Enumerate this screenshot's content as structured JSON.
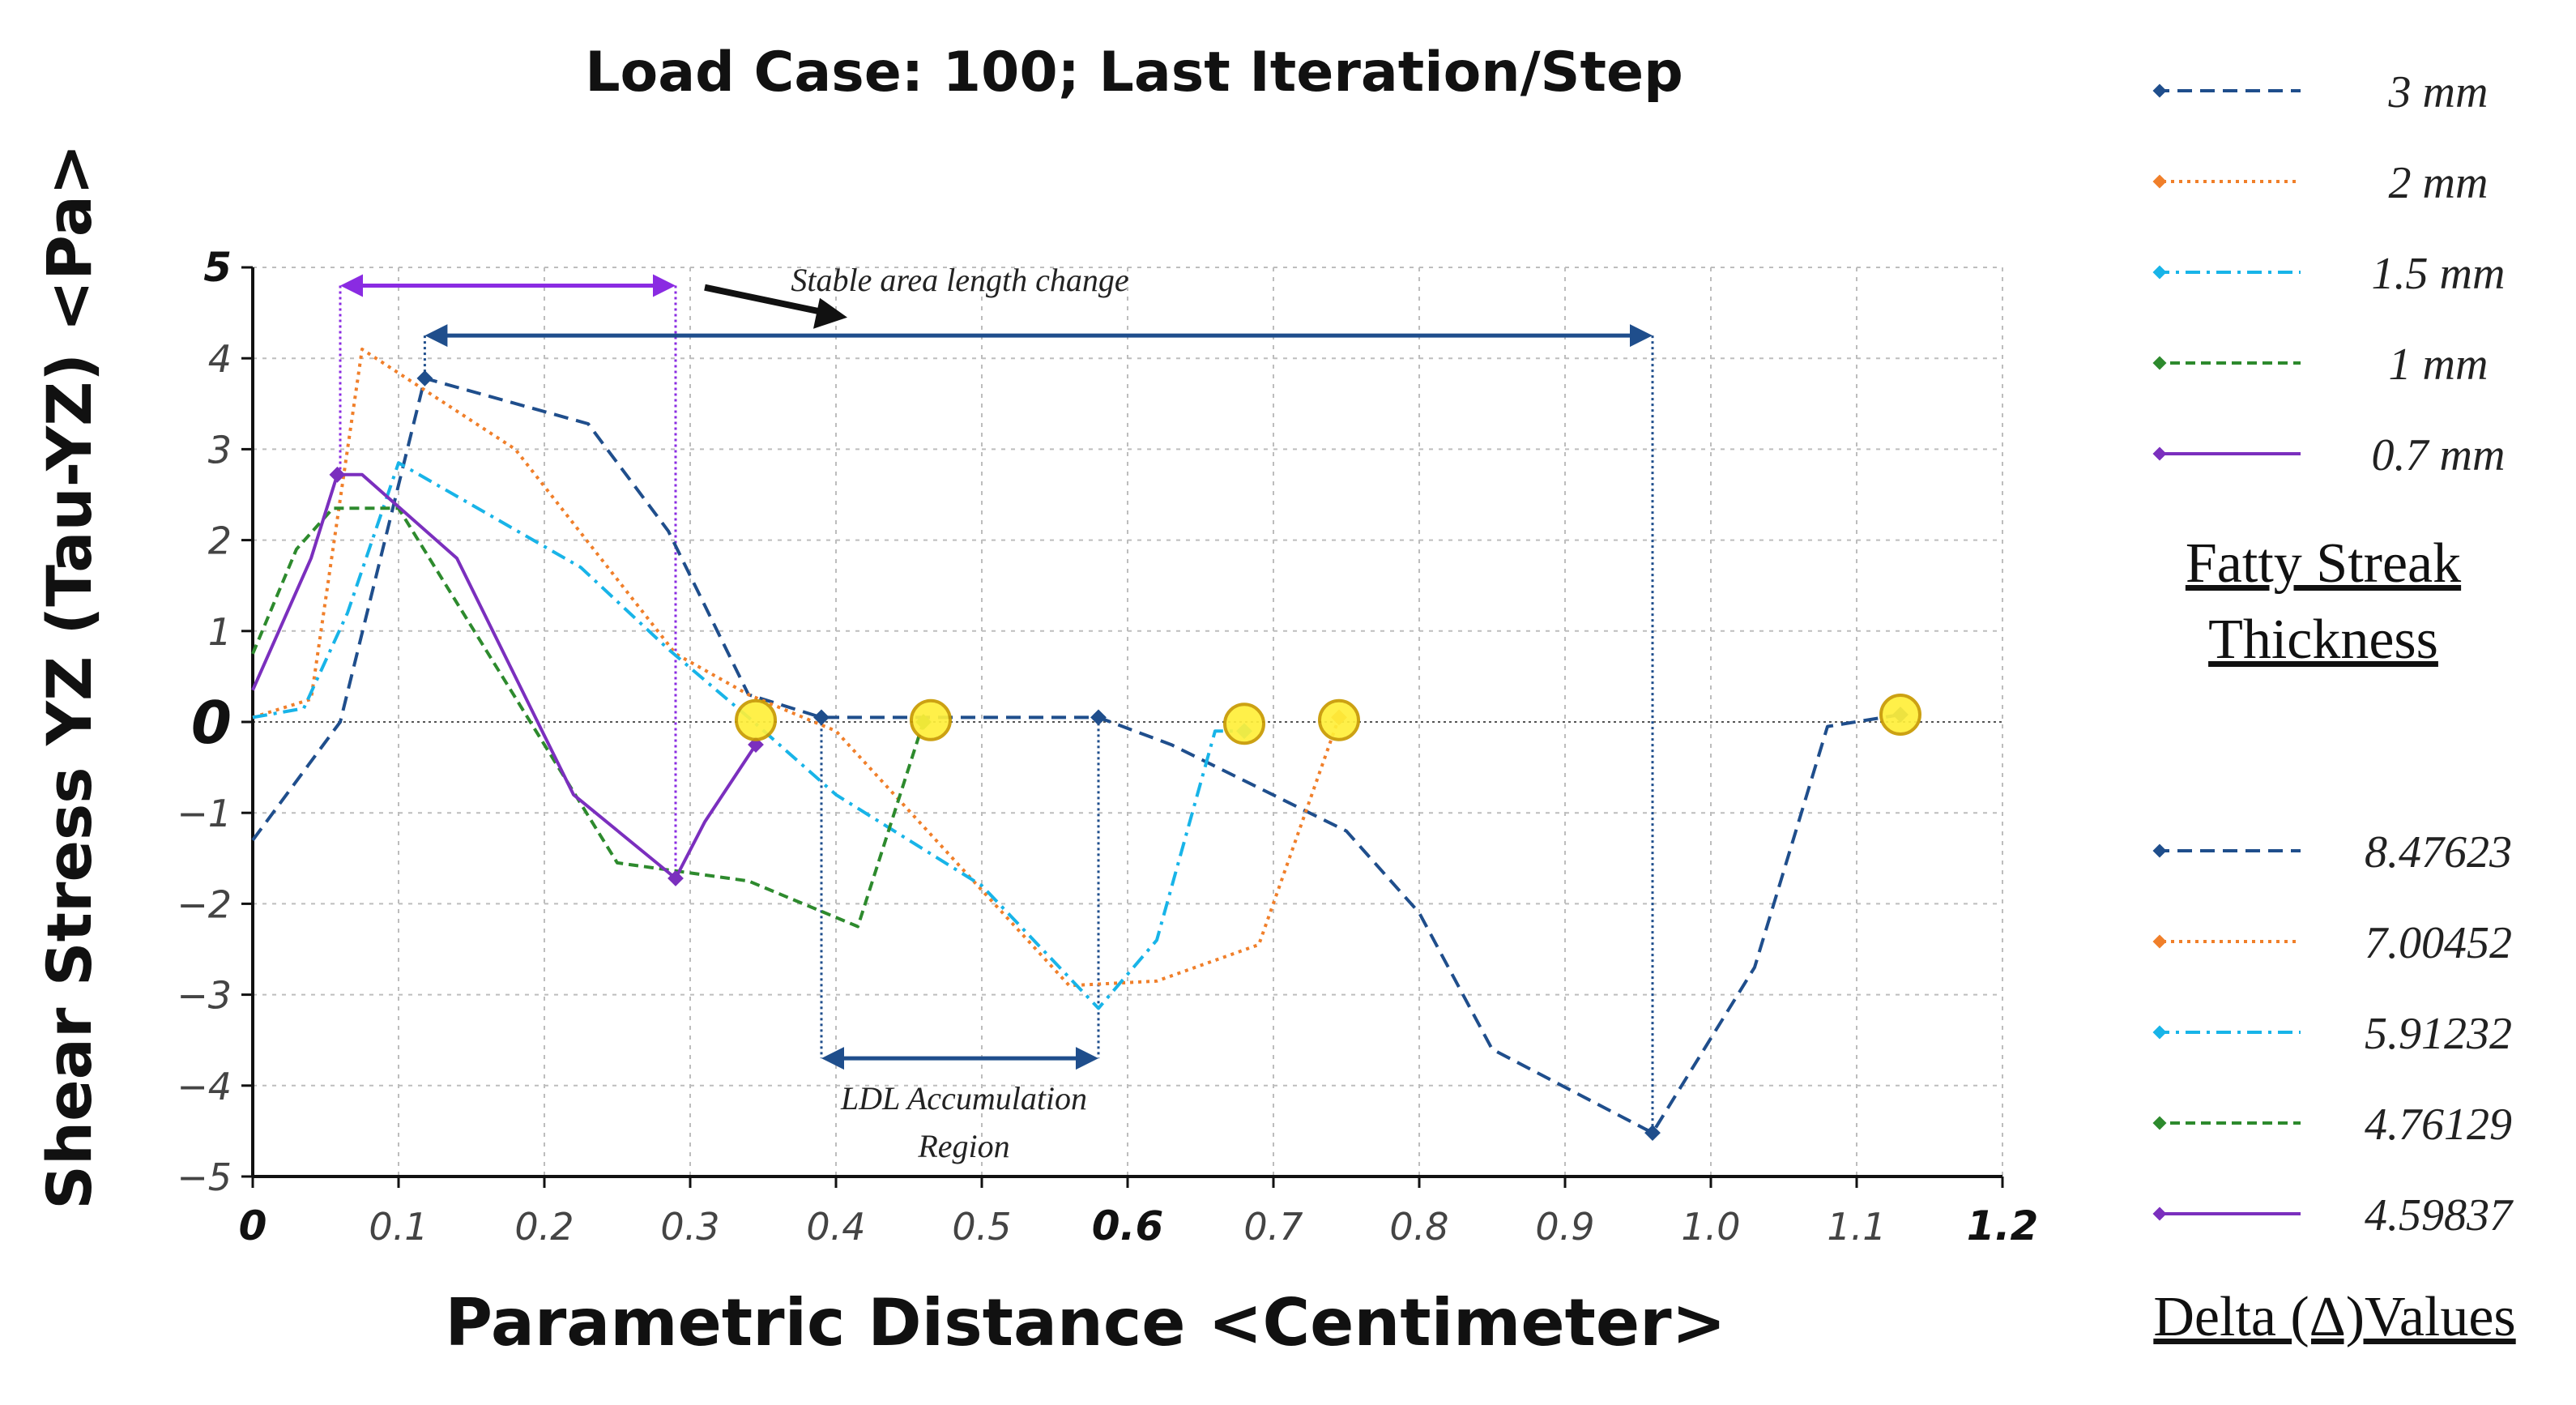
{
  "chart_data": {
    "type": "line",
    "title": "Load Case: 100; Last Iteration/Step",
    "xlabel": "Parametric Distance <Centimeter>",
    "ylabel": "Shear Stress YZ (Tau-YZ) <Pa>",
    "xlim": [
      0,
      1.2
    ],
    "ylim": [
      -5,
      5
    ],
    "x_ticks": [
      {
        "value": 0,
        "label": "0",
        "bold": true
      },
      {
        "value": 0.1,
        "label": "0.1"
      },
      {
        "value": 0.2,
        "label": "0.2"
      },
      {
        "value": 0.3,
        "label": "0.3"
      },
      {
        "value": 0.4,
        "label": "0.4"
      },
      {
        "value": 0.5,
        "label": "0.5"
      },
      {
        "value": 0.6,
        "label": "0.6",
        "bold": true
      },
      {
        "value": 0.7,
        "label": "0.7"
      },
      {
        "value": 0.8,
        "label": "0.8"
      },
      {
        "value": 0.9,
        "label": "0.9"
      },
      {
        "value": 1.0,
        "label": "1.0"
      },
      {
        "value": 1.1,
        "label": "1.1"
      },
      {
        "value": 1.2,
        "label": "1.2",
        "bold": true
      }
    ],
    "y_ticks": [
      {
        "value": 5,
        "label": "5",
        "bold": true
      },
      {
        "value": 4,
        "label": "4"
      },
      {
        "value": 3,
        "label": "3"
      },
      {
        "value": 2,
        "label": "2"
      },
      {
        "value": 1,
        "label": "1"
      },
      {
        "value": 0,
        "label": "0",
        "bold": true
      },
      {
        "value": -1,
        "label": "−1"
      },
      {
        "value": -2,
        "label": "−2"
      },
      {
        "value": -3,
        "label": "−3"
      },
      {
        "value": -4,
        "label": "−4"
      },
      {
        "value": -5,
        "label": "−5"
      }
    ],
    "grid": true,
    "legend_position": "right",
    "series": [
      {
        "name": "3 mm",
        "delta": "8.47623",
        "color": "#1f4e8c",
        "dash": "dashed",
        "points": [
          [
            0.0,
            -1.3
          ],
          [
            0.06,
            0.0
          ],
          [
            0.118,
            3.78
          ],
          [
            0.23,
            3.28
          ],
          [
            0.285,
            2.1
          ],
          [
            0.34,
            0.3
          ],
          [
            0.39,
            0.05
          ],
          [
            0.58,
            0.05
          ],
          [
            0.63,
            -0.25
          ],
          [
            0.75,
            -1.2
          ],
          [
            0.8,
            -2.1
          ],
          [
            0.85,
            -3.6
          ],
          [
            0.96,
            -4.52
          ],
          [
            1.03,
            -2.7
          ],
          [
            1.08,
            -0.05
          ],
          [
            1.13,
            0.08
          ]
        ]
      },
      {
        "name": "2 mm",
        "delta": "7.00452",
        "color": "#f07f2a",
        "dash": "dotted",
        "points": [
          [
            0.0,
            0.05
          ],
          [
            0.04,
            0.25
          ],
          [
            0.075,
            4.1
          ],
          [
            0.18,
            3.0
          ],
          [
            0.29,
            0.75
          ],
          [
            0.34,
            0.3
          ],
          [
            0.4,
            -0.1
          ],
          [
            0.56,
            -2.9
          ],
          [
            0.62,
            -2.85
          ],
          [
            0.69,
            -2.45
          ],
          [
            0.745,
            0.05
          ]
        ]
      },
      {
        "name": "1.5 mm",
        "delta": "5.91232",
        "color": "#18b4e8",
        "dash": "dashdot",
        "points": [
          [
            0.0,
            0.05
          ],
          [
            0.035,
            0.15
          ],
          [
            0.065,
            1.2
          ],
          [
            0.1,
            2.85
          ],
          [
            0.225,
            1.7
          ],
          [
            0.285,
            0.8
          ],
          [
            0.34,
            0.05
          ],
          [
            0.4,
            -0.8
          ],
          [
            0.5,
            -1.8
          ],
          [
            0.58,
            -3.15
          ],
          [
            0.62,
            -2.4
          ],
          [
            0.66,
            -0.1
          ],
          [
            0.68,
            -0.1
          ]
        ]
      },
      {
        "name": "1 mm",
        "delta": "4.76129",
        "color": "#2d8a2d",
        "dash": "dashed-fine",
        "points": [
          [
            0.0,
            0.75
          ],
          [
            0.03,
            1.9
          ],
          [
            0.055,
            2.35
          ],
          [
            0.1,
            2.35
          ],
          [
            0.25,
            -1.55
          ],
          [
            0.34,
            -1.75
          ],
          [
            0.415,
            -2.25
          ],
          [
            0.46,
            0.0
          ]
        ]
      },
      {
        "name": "0.7 mm",
        "delta": "4.59837",
        "color": "#7b2fbe",
        "dash": "solid",
        "points": [
          [
            0.0,
            0.35
          ],
          [
            0.04,
            1.8
          ],
          [
            0.058,
            2.72
          ],
          [
            0.075,
            2.72
          ],
          [
            0.14,
            1.8
          ],
          [
            0.22,
            -0.8
          ],
          [
            0.29,
            -1.72
          ],
          [
            0.31,
            -1.1
          ],
          [
            0.345,
            -0.25
          ]
        ]
      }
    ],
    "marker_points": [
      [
        0.345,
        0.02
      ],
      [
        0.465,
        0.02
      ],
      [
        0.68,
        -0.02
      ],
      [
        0.745,
        0.02
      ],
      [
        1.13,
        0.08
      ]
    ],
    "annotations": {
      "stable_area": {
        "text": "Stable area length change",
        "purple_span": [
          0.06,
          0.29
        ],
        "blue_span": [
          0.118,
          0.96
        ],
        "purple_y": 4.8,
        "blue_y": 4.25
      },
      "ldl_region": {
        "text_line1": "LDL Accumulation",
        "text_line2": "Region",
        "span": [
          0.39,
          0.58
        ],
        "y": -3.7
      }
    },
    "legend_heading_1": [
      "Fatty Streak",
      "Thickness"
    ],
    "legend_heading_2": "Delta (Δ)Values"
  }
}
